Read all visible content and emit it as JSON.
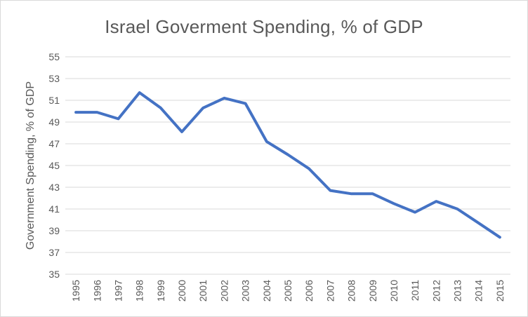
{
  "chart_data": {
    "type": "line",
    "title": "Israel Goverment Spending, % of GDP",
    "xlabel": "",
    "ylabel": "Government Spending, % of GDP",
    "ylim": [
      35,
      55
    ],
    "yticks": [
      35,
      37,
      39,
      41,
      43,
      45,
      47,
      49,
      51,
      53,
      55
    ],
    "grid": true,
    "legend": "none",
    "categories": [
      "1995",
      "1996",
      "1997",
      "1998",
      "1999",
      "2000",
      "2001",
      "2002",
      "2003",
      "2004",
      "2005",
      "2006",
      "2007",
      "2008",
      "2009",
      "2010",
      "2011",
      "2012",
      "2013",
      "2014",
      "2015"
    ],
    "series": [
      {
        "color": "#4472c4",
        "values": [
          49.9,
          49.9,
          49.3,
          51.7,
          50.3,
          48.1,
          50.3,
          51.2,
          50.7,
          47.2,
          46.0,
          44.7,
          42.7,
          42.4,
          42.4,
          41.5,
          40.7,
          41.7,
          41.0,
          39.7,
          38.4
        ]
      }
    ]
  }
}
